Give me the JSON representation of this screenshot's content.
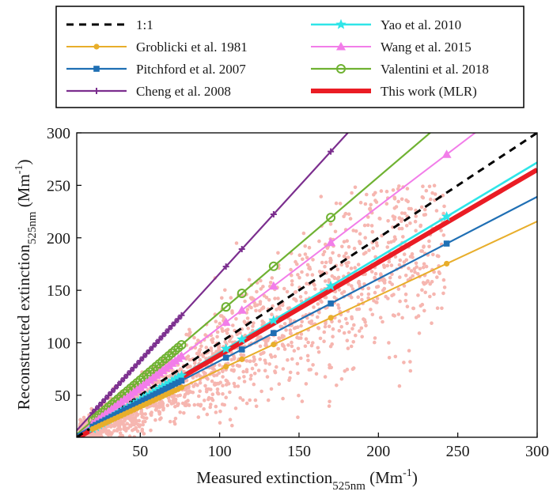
{
  "chart_data": {
    "type": "scatter",
    "xlabel": {
      "main": "Measured extinction",
      "sub": "525nm",
      "unit": "(Mm",
      "sup": "-1",
      "close": ")"
    },
    "ylabel": {
      "main": "Reconstructed extinction",
      "sub": "525nm",
      "unit": "(Mm",
      "sup": "-1",
      "close": ")"
    },
    "xlim": [
      10,
      300
    ],
    "ylim": [
      10,
      300
    ],
    "xticks": [
      50,
      100,
      150,
      200,
      250,
      300
    ],
    "yticks": [
      50,
      100,
      150,
      200,
      250,
      300
    ],
    "grid": false,
    "legend_position": "top, outside plot",
    "scatter": {
      "color": "#f6b6b0",
      "description_points": "measured vs reconstructed cloud along 1:1 line"
    },
    "lines": [
      {
        "name": "1:1",
        "color": "#000000",
        "slope": 1.0,
        "intercept": 0,
        "marker": "none",
        "dash": true,
        "width": 3
      },
      {
        "name": "Groblicki et al. 1981",
        "color": "#e8ae2b",
        "slope": 0.706,
        "intercept": 3.8,
        "marker": "circle-filled",
        "width": 2
      },
      {
        "name": "Pitchford et al. 2007",
        "color": "#1f6fb4",
        "slope": 0.782,
        "intercept": 4.5,
        "marker": "square-filled",
        "width": 2.2
      },
      {
        "name": "Cheng et al. 2008",
        "color": "#7b2e8e",
        "slope": 1.66,
        "intercept": 0,
        "marker": "plus",
        "width": 2.2
      },
      {
        "name": "Yao et al. 2010",
        "color": "#2fe5e8",
        "slope": 0.906,
        "intercept": 0,
        "marker": "star",
        "width": 2.6
      },
      {
        "name": "Wang et al. 2015",
        "color": "#f27de9",
        "slope": 1.15,
        "intercept": 0,
        "marker": "triangle-filled",
        "width": 2
      },
      {
        "name": "Valentini et al. 2018",
        "color": "#6fb232",
        "slope": 1.29,
        "intercept": 0,
        "marker": "circle-open",
        "width": 2.2
      },
      {
        "name": "This work (MLR)",
        "color": "#ea1c24",
        "slope": 0.883,
        "intercept": 0,
        "marker": "none",
        "width": 6
      }
    ],
    "marker_x": [
      20,
      22,
      24,
      26,
      28,
      30,
      32,
      34,
      36,
      38,
      40,
      42,
      44,
      46,
      48,
      50,
      52,
      54,
      56,
      58,
      60,
      62,
      64,
      66,
      68,
      70,
      72,
      74,
      76,
      104,
      114,
      134,
      170,
      243
    ],
    "marker_x_cheng": [
      20,
      22,
      24,
      26,
      28,
      30,
      32,
      34,
      36,
      38,
      40,
      42,
      44,
      46,
      48,
      50,
      52,
      54,
      56,
      58,
      60,
      62,
      64,
      66,
      68,
      70,
      72,
      74,
      76,
      104,
      114,
      134,
      170
    ]
  }
}
